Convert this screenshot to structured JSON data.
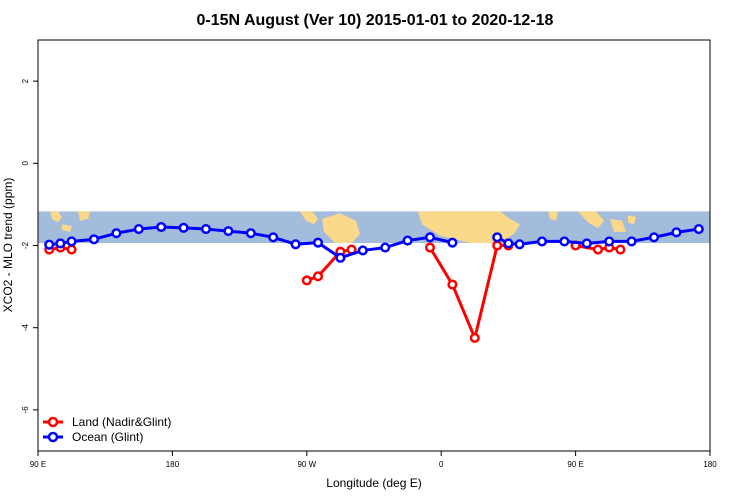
{
  "chart_data": {
    "type": "line",
    "title": "0-15N August (Ver 10)   2015-01-01 to 2020-12-18",
    "xlabel": "Longitude (deg E)",
    "ylabel": "XCO2 - MLO trend (ppm)",
    "xlim": [
      90,
      540
    ],
    "ylim": [
      -7,
      3
    ],
    "x_ticks": [
      {
        "value": 90,
        "label": "90 E"
      },
      {
        "value": 180,
        "label": "180"
      },
      {
        "value": 270,
        "label": "90 W"
      },
      {
        "value": 360,
        "label": "0"
      },
      {
        "value": 450,
        "label": "90 E"
      },
      {
        "value": 540,
        "label": "180"
      }
    ],
    "y_ticks": [
      {
        "value": 2,
        "label": "2"
      },
      {
        "value": 0,
        "label": "0"
      },
      {
        "value": -2,
        "label": "-2"
      },
      {
        "value": -4,
        "label": "-4"
      },
      {
        "value": -6,
        "label": "-6"
      }
    ],
    "map_band": {
      "lat_min": -1.94,
      "lat_max": -1.17,
      "ocean_color": "#a4bcdc",
      "land_color": "#fbd98a"
    },
    "legend_position": "bottom-left",
    "series": [
      {
        "name": "Land (Nadir&Glint)",
        "color": "#ff0000",
        "segments": [
          [
            [
              97.5,
              -2.1
            ],
            [
              105,
              -2.05
            ],
            [
              112.5,
              -2.1
            ]
          ],
          [
            [
              270,
              -2.85
            ],
            [
              277.5,
              -2.75
            ],
            [
              292.5,
              -2.15
            ],
            [
              300,
              -2.1
            ]
          ],
          [
            [
              352.5,
              -2.05
            ],
            [
              367.5,
              -2.95
            ],
            [
              382.5,
              -4.25
            ],
            [
              397.5,
              -2.0
            ],
            [
              405,
              -2.0
            ]
          ],
          [
            [
              450,
              -2.0
            ],
            [
              465,
              -2.1
            ],
            [
              472.5,
              -2.05
            ],
            [
              480,
              -2.1
            ]
          ]
        ]
      },
      {
        "name": "Ocean (Glint)",
        "color": "#0000ff",
        "segments": [
          [
            [
              97.5,
              -1.98
            ],
            [
              105,
              -1.95
            ],
            [
              112.5,
              -1.9
            ],
            [
              127.5,
              -1.85
            ],
            [
              142.5,
              -1.7
            ],
            [
              157.5,
              -1.6
            ],
            [
              172.5,
              -1.55
            ],
            [
              187.5,
              -1.57
            ],
            [
              202.5,
              -1.6
            ],
            [
              217.5,
              -1.65
            ],
            [
              232.5,
              -1.7
            ],
            [
              247.5,
              -1.8
            ],
            [
              262.5,
              -1.97
            ],
            [
              277.5,
              -1.93
            ],
            [
              292.5,
              -2.3
            ],
            [
              307.5,
              -2.12
            ],
            [
              322.5,
              -2.05
            ],
            [
              337.5,
              -1.88
            ],
            [
              352.5,
              -1.8
            ],
            [
              367.5,
              -1.93
            ]
          ],
          [
            [
              397.5,
              -1.8
            ],
            [
              405,
              -1.95
            ],
            [
              412.5,
              -1.97
            ],
            [
              427.5,
              -1.9
            ],
            [
              442.5,
              -1.9
            ],
            [
              457.5,
              -1.95
            ],
            [
              472.5,
              -1.9
            ],
            [
              487.5,
              -1.9
            ],
            [
              502.5,
              -1.8
            ],
            [
              517.5,
              -1.68
            ],
            [
              532.5,
              -1.6
            ]
          ]
        ]
      }
    ]
  }
}
